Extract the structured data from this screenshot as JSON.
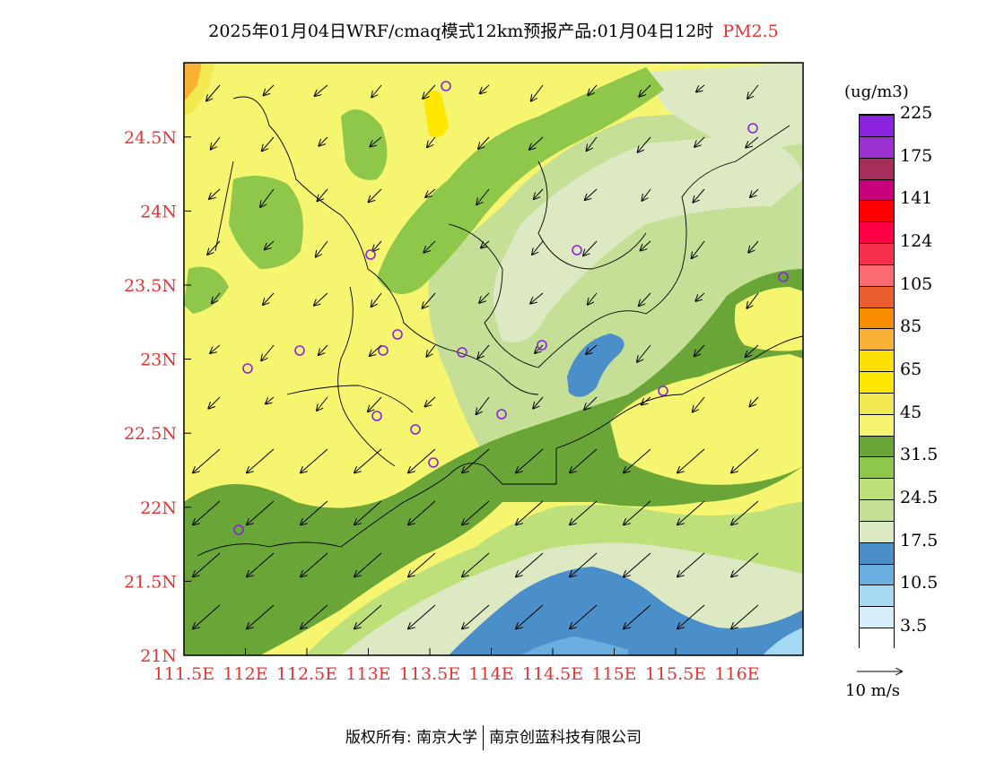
{
  "title": {
    "main": "2025年01月04日WRF/cmaq模式12km预报产品:01月04日12时",
    "product": "PM2.5"
  },
  "colorbar": {
    "unit": "(ug/m3)",
    "colors": [
      "#ffffff",
      "#d6eefa",
      "#a5daf5",
      "#6aaee0",
      "#4a8fc9",
      "#dde9c3",
      "#c6df96",
      "#bde07a",
      "#8fc74a",
      "#6aa637",
      "#f6f56f",
      "#f2e84f",
      "#ffe600",
      "#fde000",
      "#f8b134",
      "#f98d00",
      "#ea5e2d",
      "#fb6a6e",
      "#f7304f",
      "#ff0046",
      "#ff0000",
      "#c8007d",
      "#a52f5a",
      "#9b2fcf",
      "#8a22e0"
    ],
    "labels": [
      "3.5",
      "10.5",
      "17.5",
      "24.5",
      "31.5",
      "45",
      "65",
      "85",
      "105",
      "124",
      "141",
      "175",
      "225"
    ]
  },
  "axes": {
    "x_ticks": [
      "111.5E",
      "112E",
      "112.5E",
      "113E",
      "113.5E",
      "114E",
      "114.5E",
      "115E",
      "115.5E",
      "116E"
    ],
    "y_ticks": [
      "21N",
      "21.5N",
      "22N",
      "22.5N",
      "23N",
      "23.5N",
      "24N",
      "24.5N"
    ],
    "tick_color": "#e63333"
  },
  "wind_reference": {
    "label": "10 m/s"
  },
  "copyright": {
    "left": "版权所有: 南京大学",
    "right": "南京创蓝科技有限公司"
  }
}
